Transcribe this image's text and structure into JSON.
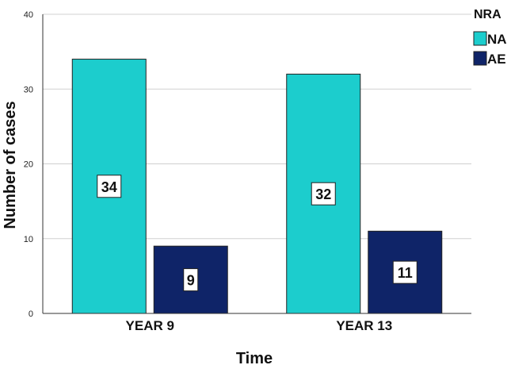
{
  "chart_data": {
    "type": "bar",
    "categories": [
      "YEAR 9",
      "YEAR 13"
    ],
    "series": [
      {
        "name": "NA",
        "values": [
          34,
          32
        ],
        "color": "#1ccdcd"
      },
      {
        "name": "AE",
        "values": [
          9,
          11
        ],
        "color": "#0f2468"
      }
    ],
    "xlabel": "Time",
    "ylabel": "Number of cases",
    "ylim": [
      0,
      40
    ],
    "yticks": [
      "0",
      "10",
      "20",
      "30",
      "40"
    ],
    "grid": true,
    "legend": {
      "title": "NRA",
      "placement": "top-right",
      "entries": [
        "NA",
        "AE"
      ]
    },
    "data_labels": true
  }
}
